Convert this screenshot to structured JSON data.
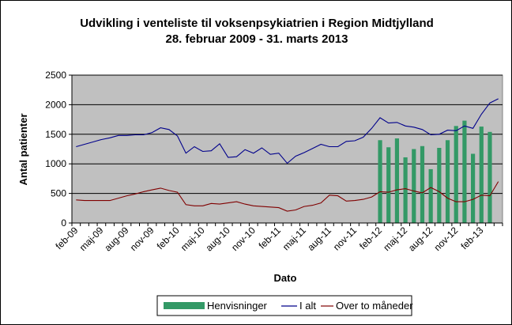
{
  "chart_data": {
    "type": "bar+line",
    "title": "Udvikling i venteliste til voksenpsykiatrien i Region Midtjylland",
    "subtitle": "28. februar 2009 - 31. marts 2013",
    "xlabel": "Dato",
    "ylabel": "Antal patienter",
    "ylim": [
      0,
      2500
    ],
    "yticks": [
      "0",
      "500",
      "1000",
      "1500",
      "2000",
      "2500"
    ],
    "grid": true,
    "legend_position": "bottom",
    "x_tick_labels": [
      "feb-09",
      "maj-09",
      "aug-09",
      "nov-09",
      "feb-10",
      "maj-10",
      "aug-10",
      "nov-10",
      "feb-11",
      "maj-11",
      "aug-11",
      "nov-11",
      "feb-12",
      "maj-12",
      "aug-12",
      "nov-12",
      "feb-13"
    ],
    "x_tick_months_from_feb09": [
      0,
      3,
      6,
      9,
      12,
      15,
      18,
      21,
      24,
      27,
      30,
      33,
      36,
      39,
      42,
      45,
      48
    ],
    "series": [
      {
        "name": "Henvisninger",
        "kind": "bar",
        "color": "#339966",
        "months_from_feb09": [
          36,
          37,
          38,
          39,
          40,
          41,
          42,
          43,
          44,
          45,
          46,
          47,
          48,
          49
        ],
        "values": [
          1400,
          1280,
          1430,
          1110,
          1250,
          1300,
          910,
          1270,
          1400,
          1640,
          1730,
          1170,
          1630,
          1540
        ]
      },
      {
        "name": "I alt",
        "kind": "line",
        "color": "#00008b",
        "months_from_feb09": [
          0,
          1,
          2,
          3,
          4,
          5,
          6,
          7,
          8,
          9,
          10,
          11,
          12,
          13,
          14,
          15,
          16,
          17,
          18,
          19,
          20,
          21,
          22,
          23,
          24,
          25,
          26,
          27,
          28,
          29,
          30,
          31,
          32,
          33,
          34,
          35,
          36,
          37,
          38,
          39,
          40,
          41,
          42,
          43,
          44,
          45,
          46,
          47,
          48,
          49,
          50
        ],
        "values": [
          1290,
          1330,
          1370,
          1410,
          1440,
          1480,
          1480,
          1490,
          1490,
          1530,
          1610,
          1580,
          1470,
          1180,
          1290,
          1210,
          1220,
          1340,
          1110,
          1120,
          1240,
          1180,
          1270,
          1160,
          1180,
          1010,
          1130,
          1190,
          1260,
          1330,
          1290,
          1290,
          1380,
          1390,
          1450,
          1600,
          1780,
          1690,
          1700,
          1640,
          1620,
          1580,
          1490,
          1500,
          1570,
          1560,
          1640,
          1600,
          1840,
          2030,
          2100
        ]
      },
      {
        "name": "Over to måneder",
        "kind": "line",
        "color": "#800000",
        "months_from_feb09": [
          0,
          1,
          2,
          3,
          4,
          5,
          6,
          7,
          8,
          9,
          10,
          11,
          12,
          13,
          14,
          15,
          16,
          17,
          18,
          19,
          20,
          21,
          22,
          23,
          24,
          25,
          26,
          27,
          28,
          29,
          30,
          31,
          32,
          33,
          34,
          35,
          36,
          37,
          38,
          39,
          40,
          41,
          42,
          43,
          44,
          45,
          46,
          47,
          48,
          49,
          50
        ],
        "values": [
          390,
          380,
          380,
          380,
          380,
          420,
          460,
          490,
          530,
          560,
          590,
          550,
          520,
          310,
          290,
          290,
          330,
          320,
          340,
          360,
          320,
          290,
          280,
          270,
          260,
          200,
          220,
          280,
          300,
          340,
          470,
          460,
          370,
          380,
          400,
          440,
          530,
          520,
          560,
          580,
          540,
          510,
          600,
          530,
          420,
          360,
          360,
          400,
          470,
          460,
          700
        ]
      }
    ]
  }
}
